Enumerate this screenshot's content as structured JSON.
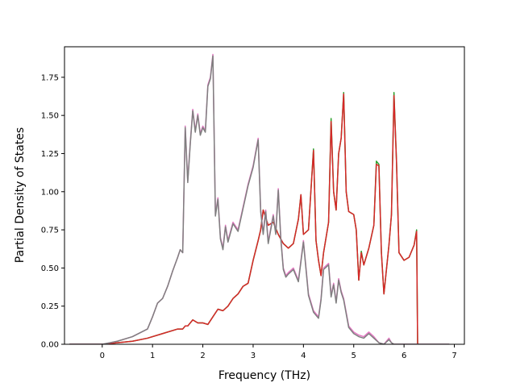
{
  "chart_data": {
    "type": "line",
    "title": "",
    "xlabel": "Frequency (THz)",
    "ylabel": "Partial Density of States",
    "xlim": [
      -0.75,
      7.2
    ],
    "ylim": [
      0.0,
      1.95
    ],
    "x_ticks": [
      0,
      1,
      2,
      3,
      4,
      5,
      6,
      7
    ],
    "x_tick_labels": [
      "0",
      "1",
      "2",
      "3",
      "4",
      "5",
      "6",
      "7"
    ],
    "y_ticks": [
      0.0,
      0.25,
      0.5,
      0.75,
      1.0,
      1.25,
      1.5,
      1.75
    ],
    "y_tick_labels": [
      "0.00",
      "0.25",
      "0.50",
      "0.75",
      "1.00",
      "1.25",
      "1.50",
      "1.75"
    ],
    "grid": false,
    "legend": false,
    "series": [
      {
        "color": "#2ca02c",
        "x": [
          -0.65,
          0.0,
          0.3,
          0.6,
          0.9,
          1.2,
          1.5,
          1.6,
          1.65,
          1.7,
          1.8,
          1.9,
          2.0,
          2.1,
          2.2,
          2.3,
          2.4,
          2.5,
          2.6,
          2.7,
          2.8,
          2.9,
          3.0,
          3.1,
          3.15,
          3.2,
          3.3,
          3.4,
          3.5,
          3.6,
          3.7,
          3.8,
          3.9,
          3.95,
          4.0,
          4.1,
          4.2,
          4.25,
          4.3,
          4.35,
          4.4,
          4.5,
          4.55,
          4.6,
          4.65,
          4.7,
          4.75,
          4.8,
          4.85,
          4.9,
          4.95,
          5.0,
          5.05,
          5.1,
          5.15,
          5.2,
          5.3,
          5.4,
          5.45,
          5.5,
          5.55,
          5.6,
          5.7,
          5.75,
          5.8,
          5.85,
          5.9,
          6.0,
          6.1,
          6.2,
          6.25,
          6.27,
          6.3
        ],
        "y": [
          0.0,
          0.0,
          0.01,
          0.02,
          0.04,
          0.07,
          0.1,
          0.1,
          0.12,
          0.12,
          0.16,
          0.14,
          0.14,
          0.13,
          0.18,
          0.23,
          0.22,
          0.25,
          0.3,
          0.33,
          0.38,
          0.4,
          0.55,
          0.68,
          0.75,
          0.88,
          0.78,
          0.8,
          0.72,
          0.66,
          0.63,
          0.66,
          0.82,
          0.98,
          0.72,
          0.75,
          1.28,
          0.68,
          0.55,
          0.45,
          0.6,
          0.8,
          1.48,
          1.0,
          0.88,
          1.25,
          1.35,
          1.65,
          1.0,
          0.87,
          0.86,
          0.85,
          0.75,
          0.42,
          0.61,
          0.52,
          0.63,
          0.78,
          1.2,
          1.18,
          0.6,
          0.33,
          0.65,
          0.85,
          1.65,
          1.2,
          0.6,
          0.55,
          0.57,
          0.65,
          0.75,
          0.0,
          0.0
        ]
      },
      {
        "color": "#d62728",
        "x": [
          -0.65,
          0.0,
          0.3,
          0.6,
          0.9,
          1.2,
          1.5,
          1.6,
          1.65,
          1.7,
          1.8,
          1.9,
          2.0,
          2.1,
          2.2,
          2.3,
          2.4,
          2.5,
          2.6,
          2.7,
          2.8,
          2.9,
          3.0,
          3.1,
          3.15,
          3.2,
          3.3,
          3.4,
          3.5,
          3.6,
          3.7,
          3.8,
          3.9,
          3.95,
          4.0,
          4.1,
          4.2,
          4.25,
          4.3,
          4.35,
          4.4,
          4.5,
          4.55,
          4.6,
          4.65,
          4.7,
          4.75,
          4.8,
          4.85,
          4.9,
          4.95,
          5.0,
          5.05,
          5.1,
          5.15,
          5.2,
          5.3,
          5.4,
          5.45,
          5.5,
          5.55,
          5.6,
          5.7,
          5.75,
          5.8,
          5.85,
          5.9,
          6.0,
          6.1,
          6.2,
          6.25,
          6.27,
          6.3
        ],
        "y": [
          0.0,
          0.0,
          0.01,
          0.02,
          0.04,
          0.07,
          0.1,
          0.1,
          0.12,
          0.12,
          0.16,
          0.14,
          0.14,
          0.13,
          0.18,
          0.23,
          0.22,
          0.25,
          0.3,
          0.33,
          0.38,
          0.4,
          0.55,
          0.68,
          0.75,
          0.88,
          0.78,
          0.8,
          0.72,
          0.66,
          0.63,
          0.66,
          0.82,
          0.98,
          0.72,
          0.75,
          1.27,
          0.68,
          0.55,
          0.45,
          0.6,
          0.8,
          1.46,
          1.0,
          0.88,
          1.25,
          1.35,
          1.64,
          1.0,
          0.87,
          0.86,
          0.85,
          0.75,
          0.42,
          0.6,
          0.52,
          0.63,
          0.78,
          1.18,
          1.17,
          0.6,
          0.33,
          0.65,
          0.85,
          1.63,
          1.2,
          0.6,
          0.55,
          0.57,
          0.65,
          0.74,
          0.0,
          0.0
        ]
      },
      {
        "color": "#e377c2",
        "x": [
          -0.65,
          0.0,
          0.3,
          0.6,
          0.9,
          1.0,
          1.1,
          1.2,
          1.3,
          1.4,
          1.5,
          1.55,
          1.6,
          1.65,
          1.7,
          1.75,
          1.8,
          1.85,
          1.9,
          1.95,
          2.0,
          2.05,
          2.1,
          2.15,
          2.2,
          2.25,
          2.3,
          2.35,
          2.4,
          2.45,
          2.5,
          2.6,
          2.7,
          2.8,
          2.9,
          3.0,
          3.1,
          3.15,
          3.2,
          3.25,
          3.3,
          3.4,
          3.45,
          3.5,
          3.55,
          3.6,
          3.65,
          3.7,
          3.8,
          3.9,
          4.0,
          4.1,
          4.2,
          4.3,
          4.35,
          4.4,
          4.5,
          4.55,
          4.6,
          4.65,
          4.7,
          4.75,
          4.8,
          4.9,
          5.0,
          5.1,
          5.2,
          5.3,
          5.4,
          5.5,
          5.6,
          5.7,
          5.75,
          5.8,
          5.9,
          6.0,
          6.2,
          6.5,
          6.9
        ],
        "y": [
          0.0,
          0.0,
          0.02,
          0.05,
          0.1,
          0.18,
          0.27,
          0.3,
          0.38,
          0.48,
          0.57,
          0.62,
          0.6,
          1.43,
          1.07,
          1.32,
          1.54,
          1.4,
          1.51,
          1.38,
          1.43,
          1.4,
          1.7,
          1.75,
          1.9,
          0.85,
          0.96,
          0.7,
          0.63,
          0.78,
          0.68,
          0.8,
          0.75,
          0.9,
          1.05,
          1.17,
          1.35,
          0.88,
          0.73,
          0.88,
          0.67,
          0.85,
          0.73,
          1.02,
          0.7,
          0.5,
          0.45,
          0.47,
          0.5,
          0.42,
          0.68,
          0.33,
          0.22,
          0.18,
          0.3,
          0.5,
          0.53,
          0.32,
          0.4,
          0.28,
          0.43,
          0.35,
          0.3,
          0.12,
          0.08,
          0.06,
          0.05,
          0.08,
          0.05,
          0.01,
          0.0,
          0.04,
          0.01,
          0.0,
          0.0,
          0.0,
          0.0,
          0.0,
          0.0
        ]
      },
      {
        "color": "#7f7f7f",
        "x": [
          -0.65,
          0.0,
          0.3,
          0.6,
          0.9,
          1.0,
          1.1,
          1.2,
          1.3,
          1.4,
          1.5,
          1.55,
          1.6,
          1.65,
          1.7,
          1.75,
          1.8,
          1.85,
          1.9,
          1.95,
          2.0,
          2.05,
          2.1,
          2.15,
          2.2,
          2.25,
          2.3,
          2.35,
          2.4,
          2.45,
          2.5,
          2.6,
          2.7,
          2.8,
          2.9,
          3.0,
          3.1,
          3.15,
          3.2,
          3.25,
          3.3,
          3.4,
          3.45,
          3.5,
          3.55,
          3.6,
          3.65,
          3.7,
          3.8,
          3.9,
          4.0,
          4.1,
          4.2,
          4.3,
          4.35,
          4.4,
          4.5,
          4.55,
          4.6,
          4.65,
          4.7,
          4.75,
          4.8,
          4.9,
          5.0,
          5.1,
          5.2,
          5.3,
          5.4,
          5.5,
          5.6,
          5.7,
          5.75,
          5.8,
          5.9,
          6.0,
          6.2,
          6.5,
          6.9
        ],
        "y": [
          0.0,
          0.0,
          0.02,
          0.05,
          0.1,
          0.18,
          0.27,
          0.3,
          0.38,
          0.48,
          0.57,
          0.62,
          0.6,
          1.42,
          1.06,
          1.31,
          1.53,
          1.39,
          1.5,
          1.37,
          1.42,
          1.39,
          1.69,
          1.74,
          1.89,
          0.84,
          0.95,
          0.69,
          0.62,
          0.77,
          0.67,
          0.79,
          0.74,
          0.89,
          1.04,
          1.16,
          1.34,
          0.87,
          0.72,
          0.87,
          0.66,
          0.84,
          0.72,
          1.01,
          0.69,
          0.49,
          0.44,
          0.46,
          0.49,
          0.41,
          0.67,
          0.32,
          0.21,
          0.17,
          0.29,
          0.49,
          0.52,
          0.31,
          0.39,
          0.27,
          0.42,
          0.34,
          0.29,
          0.11,
          0.07,
          0.05,
          0.04,
          0.07,
          0.04,
          0.01,
          0.0,
          0.03,
          0.01,
          0.0,
          0.0,
          0.0,
          0.0,
          0.0,
          0.0
        ]
      }
    ]
  }
}
